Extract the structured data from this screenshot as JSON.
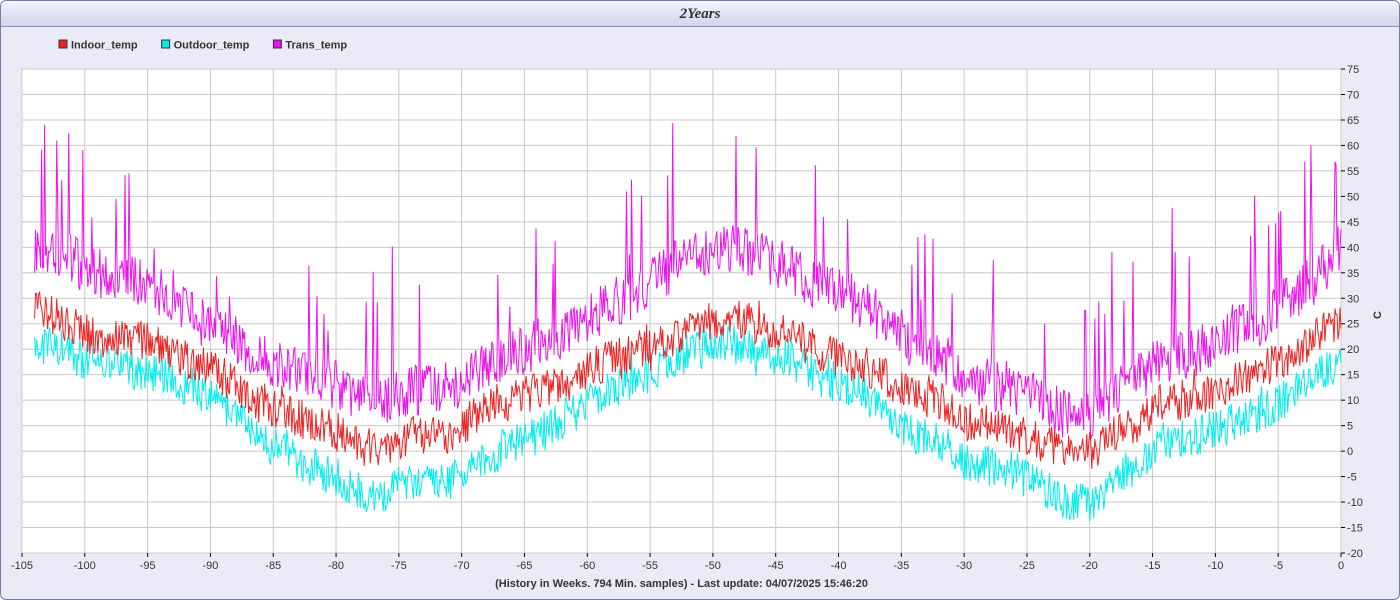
{
  "window": {
    "title": "2Years"
  },
  "chart_data": {
    "type": "line",
    "title": "2Years",
    "xlabel": "(History in Weeks. 794 Min. samples) - Last update: 04/07/2025 15:46:20",
    "ylabel": "C",
    "xlim": [
      -105,
      0
    ],
    "ylim": [
      -20,
      75
    ],
    "grid": true,
    "legend_position": "top-left",
    "x_ticks": [
      "-105",
      "-100",
      "-95",
      "-90",
      "-85",
      "-80",
      "-75",
      "-70",
      "-65",
      "-60",
      "-55",
      "-50",
      "-45",
      "-40",
      "-35",
      "-30",
      "-25",
      "-20",
      "-15",
      "-10",
      "-5",
      "0"
    ],
    "y_ticks": [
      "-20",
      "-15",
      "-10",
      "-5",
      "0",
      "5",
      "10",
      "15",
      "20",
      "25",
      "30",
      "35",
      "40",
      "45",
      "50",
      "55",
      "60",
      "65",
      "70",
      "75"
    ],
    "series": [
      {
        "name": "Indoor_temp",
        "color": "#ee2222",
        "points": [
          [
            -104,
            28
          ],
          [
            -102,
            26
          ],
          [
            -100,
            23
          ],
          [
            -98,
            22
          ],
          [
            -96,
            22
          ],
          [
            -94,
            21
          ],
          [
            -92,
            18
          ],
          [
            -90,
            16
          ],
          [
            -88,
            13
          ],
          [
            -86,
            9
          ],
          [
            -84,
            7
          ],
          [
            -82,
            6
          ],
          [
            -80,
            4
          ],
          [
            -78,
            1
          ],
          [
            -76,
            1
          ],
          [
            -74,
            3
          ],
          [
            -72,
            3
          ],
          [
            -70,
            4
          ],
          [
            -68,
            9
          ],
          [
            -66,
            10
          ],
          [
            -64,
            12
          ],
          [
            -62,
            13
          ],
          [
            -60,
            16
          ],
          [
            -58,
            18
          ],
          [
            -56,
            20
          ],
          [
            -54,
            21
          ],
          [
            -52,
            23
          ],
          [
            -50,
            26
          ],
          [
            -48,
            26
          ],
          [
            -46,
            24
          ],
          [
            -44,
            23
          ],
          [
            -42,
            20
          ],
          [
            -40,
            18
          ],
          [
            -38,
            17
          ],
          [
            -36,
            14
          ],
          [
            -34,
            11
          ],
          [
            -32,
            10
          ],
          [
            -30,
            6
          ],
          [
            -28,
            5
          ],
          [
            -26,
            4
          ],
          [
            -24,
            2
          ],
          [
            -22,
            0
          ],
          [
            -20,
            0
          ],
          [
            -18,
            3
          ],
          [
            -16,
            6
          ],
          [
            -14,
            10
          ],
          [
            -12,
            10
          ],
          [
            -10,
            12
          ],
          [
            -8,
            14
          ],
          [
            -6,
            16
          ],
          [
            -4,
            19
          ],
          [
            -2,
            22
          ],
          [
            0,
            26
          ]
        ]
      },
      {
        "name": "Outdoor_temp",
        "color": "#00eeee",
        "points": [
          [
            -104,
            21
          ],
          [
            -102,
            20
          ],
          [
            -100,
            18
          ],
          [
            -98,
            17
          ],
          [
            -96,
            16
          ],
          [
            -94,
            15
          ],
          [
            -92,
            13
          ],
          [
            -90,
            11
          ],
          [
            -88,
            7
          ],
          [
            -86,
            2
          ],
          [
            -84,
            0
          ],
          [
            -82,
            -3
          ],
          [
            -80,
            -5
          ],
          [
            -78,
            -8
          ],
          [
            -76,
            -8
          ],
          [
            -74,
            -6
          ],
          [
            -72,
            -6
          ],
          [
            -70,
            -5
          ],
          [
            -68,
            -1
          ],
          [
            -66,
            1
          ],
          [
            -64,
            3
          ],
          [
            -62,
            6
          ],
          [
            -60,
            9
          ],
          [
            -58,
            12
          ],
          [
            -56,
            14
          ],
          [
            -54,
            17
          ],
          [
            -52,
            19
          ],
          [
            -50,
            21
          ],
          [
            -48,
            21
          ],
          [
            -46,
            19
          ],
          [
            -44,
            18
          ],
          [
            -42,
            15
          ],
          [
            -40,
            13
          ],
          [
            -38,
            11
          ],
          [
            -36,
            7
          ],
          [
            -34,
            3
          ],
          [
            -32,
            2
          ],
          [
            -30,
            -2
          ],
          [
            -28,
            -3
          ],
          [
            -26,
            -4
          ],
          [
            -24,
            -7
          ],
          [
            -22,
            -10
          ],
          [
            -20,
            -10
          ],
          [
            -18,
            -6
          ],
          [
            -16,
            -2
          ],
          [
            -14,
            2
          ],
          [
            -12,
            3
          ],
          [
            -10,
            4
          ],
          [
            -8,
            6
          ],
          [
            -6,
            8
          ],
          [
            -4,
            11
          ],
          [
            -2,
            14
          ],
          [
            0,
            18
          ]
        ]
      },
      {
        "name": "Trans_temp",
        "color": "#ee11ee",
        "points": [
          [
            -104,
            40
          ],
          [
            -102,
            39
          ],
          [
            -100,
            36
          ],
          [
            -98,
            34
          ],
          [
            -96,
            34
          ],
          [
            -94,
            31
          ],
          [
            -92,
            27
          ],
          [
            -90,
            24
          ],
          [
            -88,
            22
          ],
          [
            -86,
            18
          ],
          [
            -84,
            16
          ],
          [
            -82,
            15
          ],
          [
            -80,
            13
          ],
          [
            -78,
            10
          ],
          [
            -76,
            10
          ],
          [
            -74,
            12
          ],
          [
            -72,
            12
          ],
          [
            -70,
            13
          ],
          [
            -68,
            17
          ],
          [
            -66,
            19
          ],
          [
            -64,
            21
          ],
          [
            -62,
            23
          ],
          [
            -60,
            26
          ],
          [
            -58,
            29
          ],
          [
            -56,
            31
          ],
          [
            -54,
            35
          ],
          [
            -52,
            38
          ],
          [
            -50,
            40
          ],
          [
            -48,
            40
          ],
          [
            -46,
            38
          ],
          [
            -44,
            36
          ],
          [
            -42,
            33
          ],
          [
            -40,
            31
          ],
          [
            -38,
            29
          ],
          [
            -36,
            25
          ],
          [
            -34,
            21
          ],
          [
            -32,
            19
          ],
          [
            -30,
            15
          ],
          [
            -28,
            13
          ],
          [
            -26,
            12
          ],
          [
            -24,
            10
          ],
          [
            -22,
            7
          ],
          [
            -20,
            7
          ],
          [
            -18,
            11
          ],
          [
            -16,
            15
          ],
          [
            -14,
            18
          ],
          [
            -12,
            19
          ],
          [
            -10,
            21
          ],
          [
            -8,
            24
          ],
          [
            -6,
            26
          ],
          [
            -4,
            30
          ],
          [
            -2,
            34
          ],
          [
            0,
            40
          ]
        ]
      }
    ]
  }
}
